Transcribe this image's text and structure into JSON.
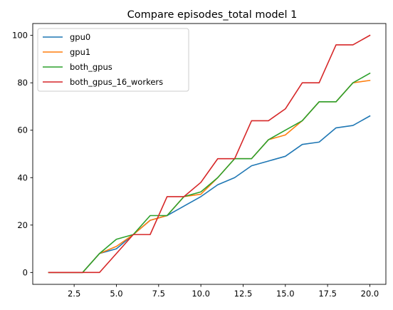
{
  "chart_data": {
    "type": "line",
    "title": "Compare episodes_total model 1",
    "xlabel": "",
    "ylabel": "",
    "xlim": [
      0.05,
      20.95
    ],
    "ylim": [
      -5,
      105
    ],
    "xticks": [
      2.5,
      5.0,
      7.5,
      10.0,
      12.5,
      15.0,
      17.5,
      20.0
    ],
    "xtick_labels": [
      "2.5",
      "5.0",
      "7.5",
      "10.0",
      "12.5",
      "15.0",
      "17.5",
      "20.0"
    ],
    "yticks": [
      0,
      20,
      40,
      60,
      80,
      100
    ],
    "ytick_labels": [
      "0",
      "20",
      "40",
      "60",
      "80",
      "100"
    ],
    "grid": false,
    "legend_position": "top-left",
    "x": [
      1,
      2,
      3,
      4,
      5,
      6,
      7,
      8,
      9,
      10,
      11,
      12,
      13,
      14,
      15,
      16,
      17,
      18,
      19,
      20
    ],
    "series": [
      {
        "name": "gpu0",
        "color": "#1f77b4",
        "values": [
          0,
          0,
          0,
          8,
          10,
          16,
          22,
          24,
          28,
          32,
          37,
          40,
          45,
          47,
          49,
          54,
          55,
          61,
          62,
          66
        ]
      },
      {
        "name": "gpu1",
        "color": "#ff7f0e",
        "values": [
          0,
          0,
          0,
          8,
          11,
          16,
          22,
          24,
          32,
          33,
          40,
          48,
          48,
          56,
          58,
          64,
          72,
          72,
          80,
          81
        ]
      },
      {
        "name": "both_gpus",
        "color": "#2ca02c",
        "values": [
          0,
          0,
          0,
          8,
          14,
          16,
          24,
          24,
          32,
          34,
          40,
          48,
          48,
          56,
          60,
          64,
          72,
          72,
          80,
          84
        ]
      },
      {
        "name": "both_gpus_16_workers",
        "color": "#d62728",
        "values": [
          0,
          0,
          0,
          0,
          8,
          16,
          16,
          32,
          32,
          38,
          48,
          48,
          64,
          64,
          69,
          80,
          80,
          96,
          96,
          100
        ]
      }
    ]
  }
}
